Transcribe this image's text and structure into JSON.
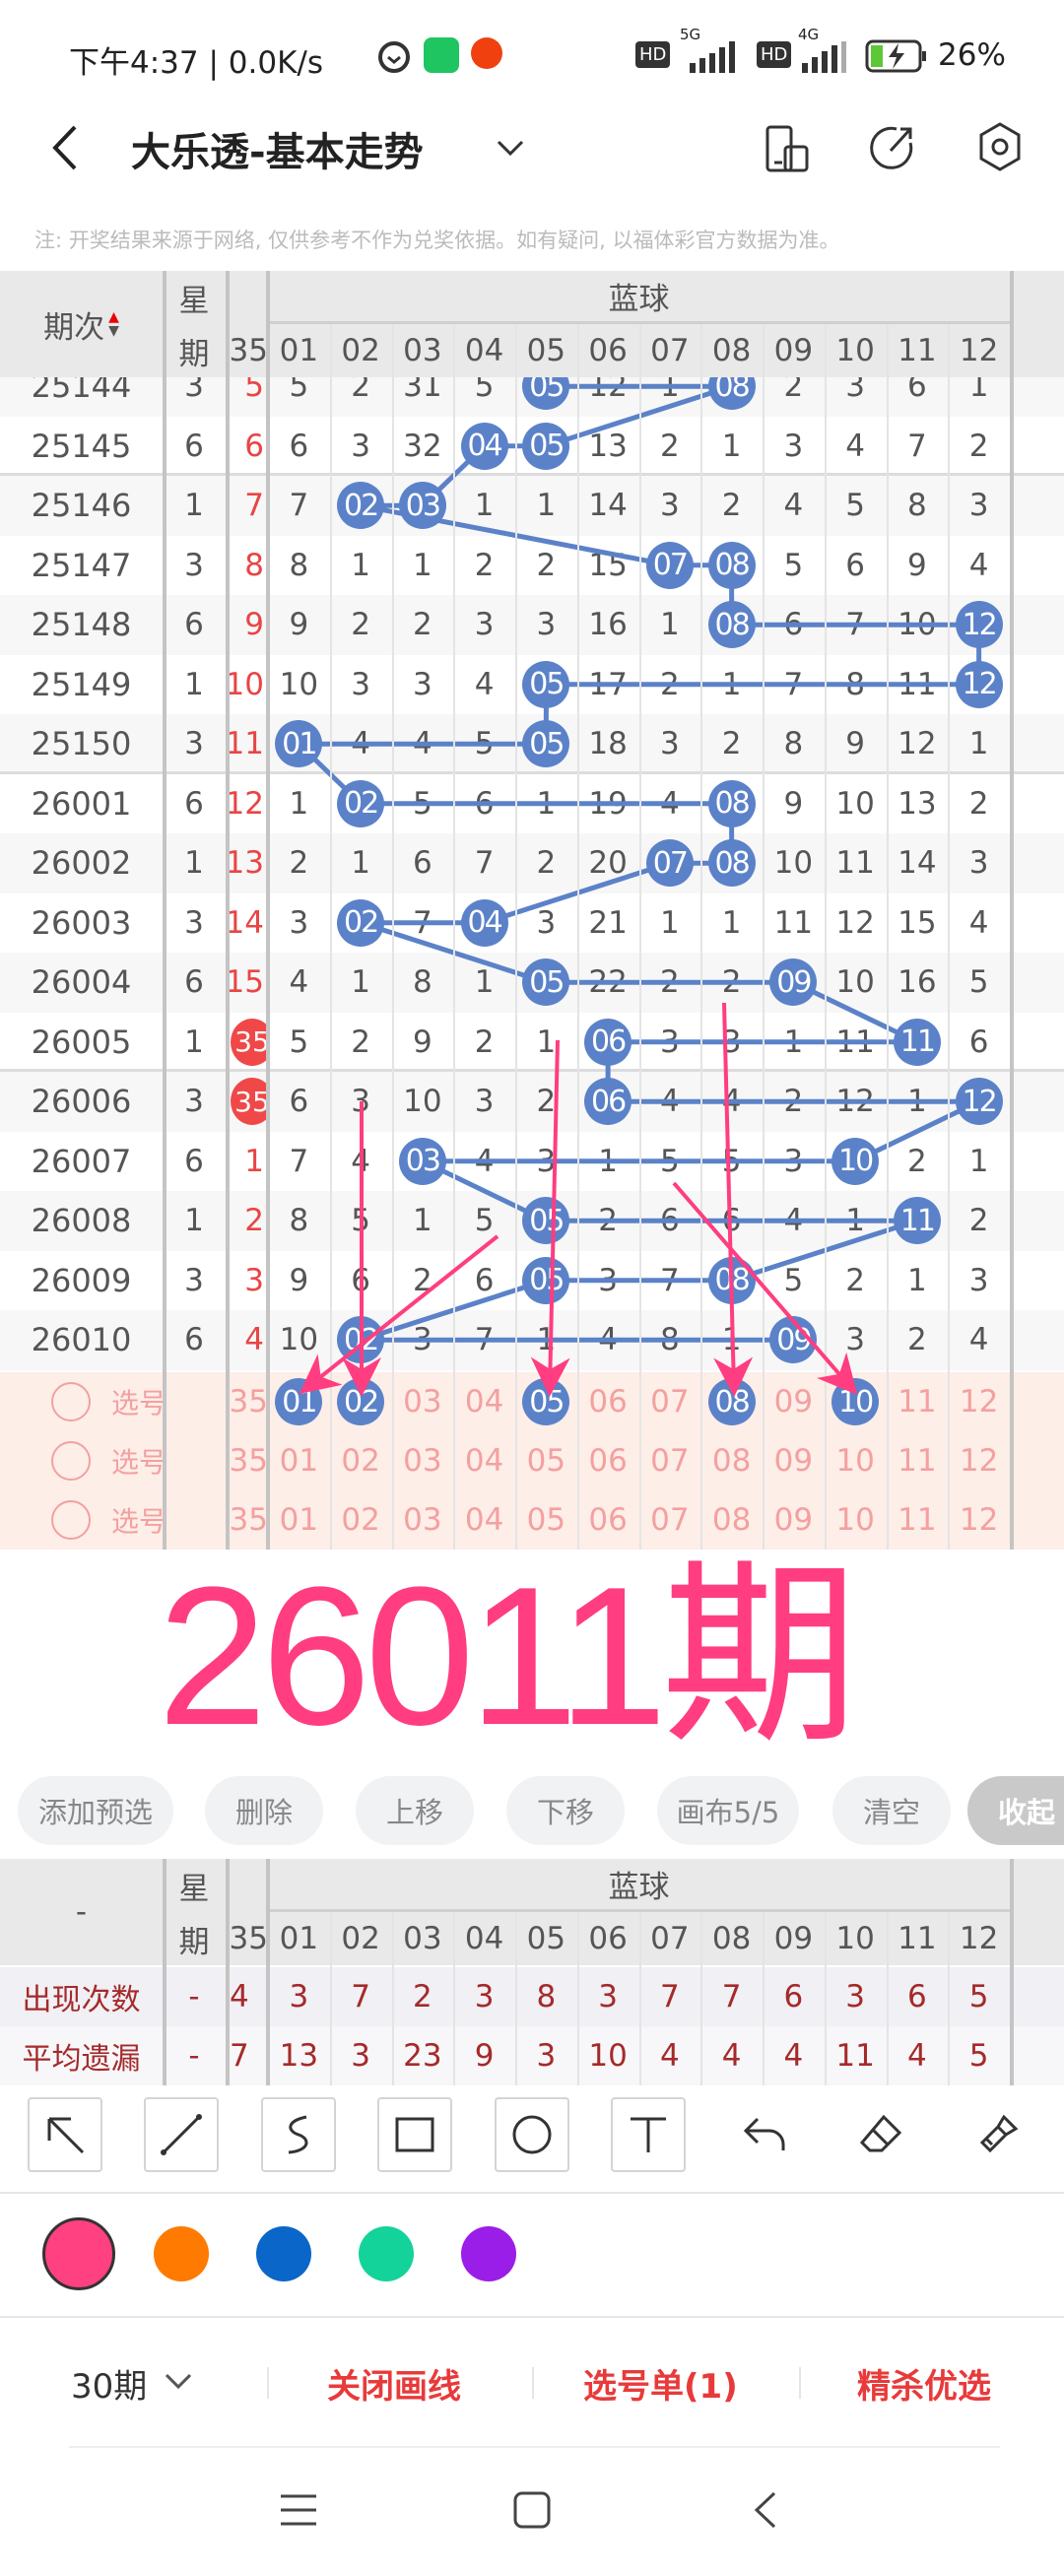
{
  "status_bar": {
    "time": "下午4:37 | 0.0K/s",
    "net1": "5G",
    "net2": "4G",
    "hd": "HD",
    "battery": "26%"
  },
  "header": {
    "title": "大乐透-基本走势",
    "icons": [
      "back-chevron-icon",
      "chevron-down-icon",
      "phone-tablet-icon",
      "share-icon",
      "settings-hexagon-icon"
    ]
  },
  "note": "注: 开奖结果来源于网络, 仅供参考不作为兑奖依据。如有疑问, 以福体彩官方数据为准。",
  "table": {
    "col_issue": "期次",
    "col_weekday_1": "星",
    "col_weekday_2": "期",
    "group": "蓝球",
    "col_prev": "35",
    "columns": [
      "01",
      "02",
      "03",
      "04",
      "05",
      "06",
      "07",
      "08",
      "09",
      "10",
      "11",
      "12"
    ],
    "rows": [
      {
        "issue": "25144",
        "wd": "3",
        "prev": "5",
        "cells": [
          "5",
          "2",
          "31",
          "5",
          "05",
          "12",
          "1",
          "08",
          "2",
          "3",
          "6",
          "1"
        ],
        "hits": [
          4,
          7
        ]
      },
      {
        "issue": "25145",
        "wd": "6",
        "prev": "6",
        "cells": [
          "6",
          "3",
          "32",
          "04",
          "05",
          "13",
          "2",
          "1",
          "3",
          "4",
          "7",
          "2"
        ],
        "hits": [
          3,
          4
        ]
      },
      {
        "issue": "25146",
        "wd": "1",
        "prev": "7",
        "cells": [
          "7",
          "02",
          "03",
          "1",
          "1",
          "14",
          "3",
          "2",
          "4",
          "5",
          "8",
          "3"
        ],
        "hits": [
          1,
          2
        ]
      },
      {
        "issue": "25147",
        "wd": "3",
        "prev": "8",
        "cells": [
          "8",
          "1",
          "1",
          "2",
          "2",
          "15",
          "07",
          "08",
          "5",
          "6",
          "9",
          "4"
        ],
        "hits": [
          6,
          7
        ]
      },
      {
        "issue": "25148",
        "wd": "6",
        "prev": "9",
        "cells": [
          "9",
          "2",
          "2",
          "3",
          "3",
          "16",
          "1",
          "08",
          "6",
          "7",
          "10",
          "12"
        ],
        "hits": [
          7,
          11
        ]
      },
      {
        "issue": "25149",
        "wd": "1",
        "prev": "10",
        "cells": [
          "10",
          "3",
          "3",
          "4",
          "05",
          "17",
          "2",
          "1",
          "7",
          "8",
          "11",
          "12"
        ],
        "hits": [
          4,
          11
        ]
      },
      {
        "issue": "25150",
        "wd": "3",
        "prev": "11",
        "cells": [
          "01",
          "4",
          "4",
          "5",
          "05",
          "18",
          "3",
          "2",
          "8",
          "9",
          "12",
          "1"
        ],
        "hits": [
          0,
          4
        ]
      },
      {
        "issue": "26001",
        "wd": "6",
        "prev": "12",
        "cells": [
          "1",
          "02",
          "5",
          "6",
          "1",
          "19",
          "4",
          "08",
          "9",
          "10",
          "13",
          "2"
        ],
        "hits": [
          1,
          7
        ]
      },
      {
        "issue": "26002",
        "wd": "1",
        "prev": "13",
        "cells": [
          "2",
          "1",
          "6",
          "7",
          "2",
          "20",
          "07",
          "08",
          "10",
          "11",
          "14",
          "3"
        ],
        "hits": [
          6,
          7
        ]
      },
      {
        "issue": "26003",
        "wd": "3",
        "prev": "14",
        "cells": [
          "3",
          "02",
          "7",
          "04",
          "3",
          "21",
          "1",
          "1",
          "11",
          "12",
          "15",
          "4"
        ],
        "hits": [
          1,
          3
        ]
      },
      {
        "issue": "26004",
        "wd": "6",
        "prev": "15",
        "cells": [
          "4",
          "1",
          "8",
          "1",
          "05",
          "22",
          "2",
          "2",
          "09",
          "10",
          "16",
          "5"
        ],
        "hits": [
          4,
          8
        ]
      },
      {
        "issue": "26005",
        "wd": "1",
        "prev": "35",
        "prev_hit": true,
        "cells": [
          "5",
          "2",
          "9",
          "2",
          "1",
          "06",
          "3",
          "3",
          "1",
          "11",
          "11",
          "6"
        ],
        "hits": [
          5,
          10
        ]
      },
      {
        "issue": "26006",
        "wd": "3",
        "prev": "35",
        "prev_hit": true,
        "cells": [
          "6",
          "3",
          "10",
          "3",
          "2",
          "06",
          "4",
          "4",
          "2",
          "12",
          "1",
          "12"
        ],
        "hits": [
          5,
          11
        ]
      },
      {
        "issue": "26007",
        "wd": "6",
        "prev": "1",
        "cells": [
          "7",
          "4",
          "03",
          "4",
          "3",
          "1",
          "5",
          "5",
          "3",
          "10",
          "2",
          "1"
        ],
        "hits": [
          2,
          9
        ]
      },
      {
        "issue": "26008",
        "wd": "1",
        "prev": "2",
        "cells": [
          "8",
          "5",
          "1",
          "5",
          "05",
          "2",
          "6",
          "6",
          "4",
          "1",
          "11",
          "2"
        ],
        "hits": [
          4,
          10
        ]
      },
      {
        "issue": "26009",
        "wd": "3",
        "prev": "3",
        "cells": [
          "9",
          "6",
          "2",
          "6",
          "05",
          "3",
          "7",
          "08",
          "5",
          "2",
          "1",
          "3"
        ],
        "hits": [
          4,
          7
        ]
      },
      {
        "issue": "26010",
        "wd": "6",
        "prev": "4",
        "cells": [
          "10",
          "02",
          "3",
          "7",
          "1",
          "4",
          "8",
          "1",
          "09",
          "3",
          "2",
          "4"
        ],
        "hits": [
          1,
          8
        ]
      }
    ],
    "select_rows": [
      {
        "label": "选号",
        "prev": "35",
        "selected": [
          0,
          1,
          4,
          7,
          9
        ]
      },
      {
        "label": "选号",
        "prev": "35",
        "selected": []
      },
      {
        "label": "选号",
        "prev": "35",
        "selected": []
      }
    ]
  },
  "annotation": {
    "text": "26011期",
    "color": "#ff3d80"
  },
  "buttons": [
    "添加预选",
    "删除",
    "上移",
    "下移",
    "画布5/5",
    "清空",
    "收起"
  ],
  "stats": {
    "col_label": "-",
    "wd1": "星",
    "wd2": "期",
    "group": "蓝球",
    "prev": "35",
    "rows": [
      {
        "label": "出现次数",
        "wd": "-",
        "prev": "4",
        "values": [
          "3",
          "7",
          "2",
          "3",
          "8",
          "3",
          "7",
          "7",
          "6",
          "3",
          "6",
          "5"
        ]
      },
      {
        "label": "平均遗漏",
        "wd": "-",
        "prev": "7",
        "values": [
          "13",
          "3",
          "23",
          "9",
          "3",
          "10",
          "4",
          "4",
          "4",
          "11",
          "4",
          "5"
        ]
      }
    ]
  },
  "tools": [
    "arrow-tool-icon",
    "line-tool-icon",
    "curve-tool-icon",
    "rectangle-tool-icon",
    "circle-tool-icon",
    "text-tool-icon",
    "undo-icon",
    "eraser-icon",
    "brush-clear-icon"
  ],
  "colors": [
    "#ff4081",
    "#ff7a00",
    "#0a66c8",
    "#14d39a",
    "#9b1de8"
  ],
  "bottom_bar": {
    "period": "30期",
    "close_lines": "关闭画线",
    "pick_list": "选号单(1)",
    "premium": "精杀优选"
  },
  "accent": "#5b82c8"
}
